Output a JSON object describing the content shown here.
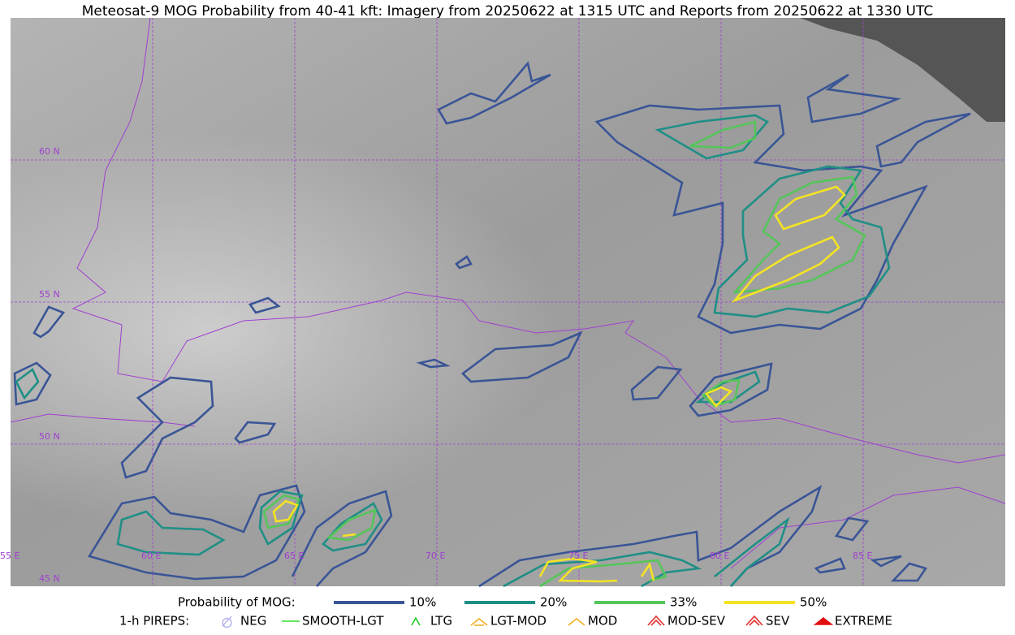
{
  "title": "Meteosat-9 MOG Probability from 40-41 kft: Imagery from 20250622 at 1315 UTC and Reports from 20250622 at 1330 UTC",
  "map": {
    "lat_labels": [
      "60 N",
      "55 N",
      "50 N",
      "45 N"
    ],
    "lon_labels": [
      "55 E",
      "60 E",
      "65 E",
      "70 E",
      "75 E",
      "80 E",
      "85 E"
    ]
  },
  "legend": {
    "probability": {
      "label": "Probability of MOG:",
      "items": [
        {
          "name": "10%",
          "color": "#3a5596"
        },
        {
          "name": "20%",
          "color": "#1f8f86"
        },
        {
          "name": "33%",
          "color": "#55c55a"
        },
        {
          "name": "50%",
          "color": "#f4e324"
        }
      ]
    },
    "pireps": {
      "label": "1-h PIREPS:",
      "items": [
        {
          "name": "NEG",
          "color": "#b8b8f0"
        },
        {
          "name": "SMOOTH-LGT",
          "color": "#33dd33"
        },
        {
          "name": "LTG",
          "color": "#22cc22"
        },
        {
          "name": "LGT-MOD",
          "color": "#f0b020"
        },
        {
          "name": "MOD",
          "color": "#f0b020"
        },
        {
          "name": "MOD-SEV",
          "color": "#e03030"
        },
        {
          "name": "SEV",
          "color": "#e03030"
        },
        {
          "name": "EXTREME",
          "color": "#e01010"
        }
      ]
    }
  }
}
